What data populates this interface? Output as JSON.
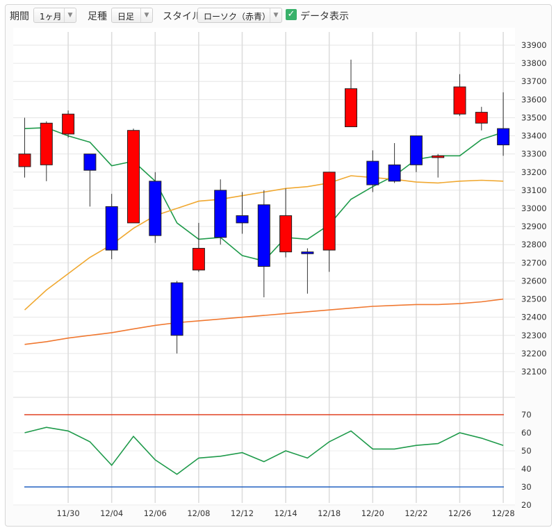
{
  "toolbar": {
    "period_label": "期間",
    "period_value": "1ヶ月",
    "bar_label": "足種",
    "bar_value": "日足",
    "style_label": "スタイル",
    "style_value": "ローソク（赤青）",
    "data_toggle_label": "データ表示",
    "data_toggle_checked": true
  },
  "colors": {
    "up": "#ff0000",
    "down": "#0000ff",
    "ma_short": "#1e9a4a",
    "ma_mid": "#f0a830",
    "ma_long": "#f07830",
    "rsi": "#1e9a4a",
    "upper_band": "#e04020",
    "lower_band": "#2060c0"
  },
  "chart_data": [
    {
      "type": "candlestick",
      "ylim": [
        32000,
        33950
      ],
      "y_ticks": [
        32100,
        32200,
        32300,
        32400,
        32500,
        32600,
        32700,
        32800,
        32900,
        33000,
        33100,
        33200,
        33300,
        33400,
        33500,
        33600,
        33700,
        33800,
        33900
      ],
      "x_ticks": [
        "11/30",
        "12/04",
        "12/06",
        "12/08",
        "12/12",
        "12/14",
        "12/18",
        "12/20",
        "12/22",
        "12/26",
        "12/28"
      ],
      "grid": true,
      "candles": [
        {
          "date": "11/28",
          "open": 33230,
          "high": 33500,
          "low": 33170,
          "close": 33300
        },
        {
          "date": "11/29",
          "open": 33240,
          "high": 33480,
          "low": 33150,
          "close": 33470
        },
        {
          "date": "11/30",
          "open": 33410,
          "high": 33540,
          "low": 33390,
          "close": 33520
        },
        {
          "date": "12/01",
          "open": 33300,
          "high": 33300,
          "low": 33010,
          "close": 33210
        },
        {
          "date": "12/04",
          "open": 33010,
          "high": 33080,
          "low": 32720,
          "close": 32770
        },
        {
          "date": "12/05",
          "open": 32920,
          "high": 33440,
          "low": 32920,
          "close": 33430
        },
        {
          "date": "12/06",
          "open": 33150,
          "high": 33200,
          "low": 32810,
          "close": 32850
        },
        {
          "date": "12/07",
          "open": 32590,
          "high": 32600,
          "low": 32200,
          "close": 32300
        },
        {
          "date": "12/08",
          "open": 32660,
          "high": 32920,
          "low": 32650,
          "close": 32780
        },
        {
          "date": "12/11",
          "open": 33100,
          "high": 33160,
          "low": 32800,
          "close": 32840
        },
        {
          "date": "12/12",
          "open": 32960,
          "high": 33090,
          "low": 32860,
          "close": 32920
        },
        {
          "date": "12/13",
          "open": 33020,
          "high": 33100,
          "low": 32510,
          "close": 32680
        },
        {
          "date": "12/14",
          "open": 32760,
          "high": 33110,
          "low": 32730,
          "close": 32960
        },
        {
          "date": "12/15",
          "open": 32760,
          "high": 32780,
          "low": 32530,
          "close": 32750
        },
        {
          "date": "12/18",
          "open": 32770,
          "high": 33200,
          "low": 32650,
          "close": 33200
        },
        {
          "date": "12/19",
          "open": 33450,
          "high": 33820,
          "low": 33450,
          "close": 33660
        },
        {
          "date": "12/20",
          "open": 33260,
          "high": 33320,
          "low": 33090,
          "close": 33130
        },
        {
          "date": "12/21",
          "open": 33240,
          "high": 33360,
          "low": 33140,
          "close": 33150
        },
        {
          "date": "12/22",
          "open": 33400,
          "high": 33400,
          "low": 33200,
          "close": 33240
        },
        {
          "date": "12/25",
          "open": 33280,
          "high": 33300,
          "low": 33170,
          "close": 33290
        },
        {
          "date": "12/26",
          "open": 33520,
          "high": 33740,
          "low": 33510,
          "close": 33670
        },
        {
          "date": "12/27",
          "open": 33470,
          "high": 33560,
          "low": 33430,
          "close": 33530
        },
        {
          "date": "12/28",
          "open": 33440,
          "high": 33640,
          "low": 33290,
          "close": 33350
        }
      ],
      "series": [
        {
          "values": [
            33440,
            33445,
            33400,
            33365,
            33235,
            33260,
            33150,
            32920,
            32830,
            32840,
            32740,
            32710,
            32840,
            32830,
            32910,
            33050,
            33120,
            33180,
            33270,
            33290,
            33290,
            33380,
            33420
          ]
        },
        {
          "values": [
            32440,
            32550,
            32640,
            32730,
            32800,
            32890,
            32960,
            33000,
            33040,
            33050,
            33070,
            33090,
            33110,
            33120,
            33140,
            33180,
            33170,
            33160,
            33145,
            33140,
            33150,
            33155,
            33150
          ]
        },
        {
          "values": [
            32250,
            32265,
            32285,
            32300,
            32315,
            32335,
            32355,
            32370,
            32380,
            32390,
            32400,
            32410,
            32420,
            32430,
            32440,
            32450,
            32460,
            32465,
            32470,
            32470,
            32475,
            32485,
            32500
          ]
        }
      ]
    },
    {
      "type": "line",
      "ylim": [
        20,
        76
      ],
      "y_ticks": [
        20,
        30,
        40,
        50,
        60,
        70
      ],
      "reference_lines": [
        70,
        30
      ],
      "series": [
        {
          "values": [
            60,
            63,
            61,
            55,
            42,
            58,
            45,
            37,
            46,
            47,
            49,
            44,
            50,
            46,
            55,
            61,
            51,
            51,
            53,
            54,
            60,
            57,
            53
          ]
        }
      ]
    }
  ]
}
